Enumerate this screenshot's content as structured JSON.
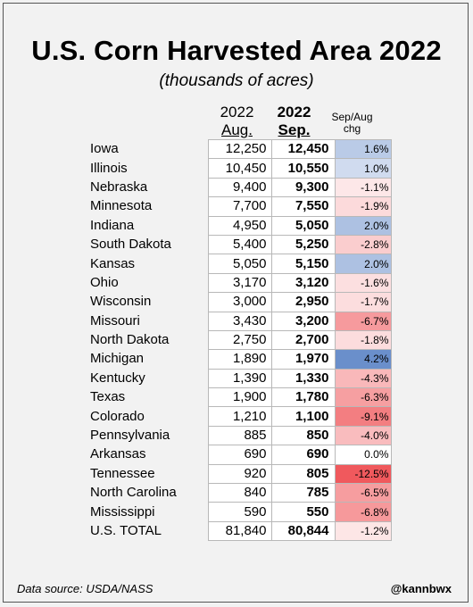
{
  "chart_data": {
    "type": "table",
    "title": "U.S. Corn Harvested Area 2022",
    "subtitle": "(thousands of acres)",
    "columns": [
      {
        "line1": "2022",
        "line2": "Aug."
      },
      {
        "line1": "2022",
        "line2": "Sep."
      },
      {
        "line1": "Sep/Aug",
        "line2": "chg"
      }
    ],
    "rows": [
      {
        "state": "Iowa",
        "aug": "12,250",
        "sep": "12,450",
        "chg": "1.6%",
        "chg_value": 1.6
      },
      {
        "state": "Illinois",
        "aug": "10,450",
        "sep": "10,550",
        "chg": "1.0%",
        "chg_value": 1.0
      },
      {
        "state": "Nebraska",
        "aug": "9,400",
        "sep": "9,300",
        "chg": "-1.1%",
        "chg_value": -1.1
      },
      {
        "state": "Minnesota",
        "aug": "7,700",
        "sep": "7,550",
        "chg": "-1.9%",
        "chg_value": -1.9
      },
      {
        "state": "Indiana",
        "aug": "4,950",
        "sep": "5,050",
        "chg": "2.0%",
        "chg_value": 2.0
      },
      {
        "state": "South Dakota",
        "aug": "5,400",
        "sep": "5,250",
        "chg": "-2.8%",
        "chg_value": -2.8
      },
      {
        "state": "Kansas",
        "aug": "5,050",
        "sep": "5,150",
        "chg": "2.0%",
        "chg_value": 2.0
      },
      {
        "state": "Ohio",
        "aug": "3,170",
        "sep": "3,120",
        "chg": "-1.6%",
        "chg_value": -1.6
      },
      {
        "state": "Wisconsin",
        "aug": "3,000",
        "sep": "2,950",
        "chg": "-1.7%",
        "chg_value": -1.7
      },
      {
        "state": "Missouri",
        "aug": "3,430",
        "sep": "3,200",
        "chg": "-6.7%",
        "chg_value": -6.7
      },
      {
        "state": "North Dakota",
        "aug": "2,750",
        "sep": "2,700",
        "chg": "-1.8%",
        "chg_value": -1.8
      },
      {
        "state": "Michigan",
        "aug": "1,890",
        "sep": "1,970",
        "chg": "4.2%",
        "chg_value": 4.2
      },
      {
        "state": "Kentucky",
        "aug": "1,390",
        "sep": "1,330",
        "chg": "-4.3%",
        "chg_value": -4.3
      },
      {
        "state": "Texas",
        "aug": "1,900",
        "sep": "1,780",
        "chg": "-6.3%",
        "chg_value": -6.3
      },
      {
        "state": "Colorado",
        "aug": "1,210",
        "sep": "1,100",
        "chg": "-9.1%",
        "chg_value": -9.1
      },
      {
        "state": "Pennsylvania",
        "aug": "885",
        "sep": "850",
        "chg": "-4.0%",
        "chg_value": -4.0
      },
      {
        "state": "Arkansas",
        "aug": "690",
        "sep": "690",
        "chg": "0.0%",
        "chg_value": 0.0
      },
      {
        "state": "Tennessee",
        "aug": "920",
        "sep": "805",
        "chg": "-12.5%",
        "chg_value": -12.5
      },
      {
        "state": "North Carolina",
        "aug": "840",
        "sep": "785",
        "chg": "-6.5%",
        "chg_value": -6.5
      },
      {
        "state": "Mississippi",
        "aug": "590",
        "sep": "550",
        "chg": "-6.8%",
        "chg_value": -6.8
      },
      {
        "state": "U.S. TOTAL",
        "aug": "81,840",
        "sep": "80,844",
        "chg": "-1.2%",
        "chg_value": -1.2
      }
    ],
    "colors": {
      "positive_max": "#6a8fcb",
      "negative_max": "#f0595d",
      "neutral": "#ffffff"
    }
  },
  "footer": {
    "source": "Data source: USDA/NASS",
    "handle": "@kannbwx"
  }
}
